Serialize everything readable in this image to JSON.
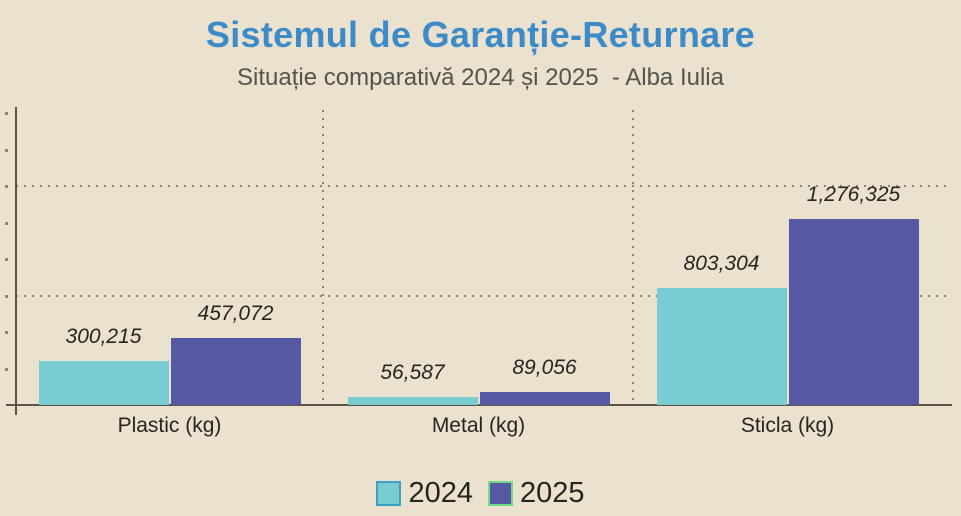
{
  "header": {
    "title": "Sistemul de Garanție-Returnare",
    "subtitle": "Situație comparativă 2024 și 2025  - Alba Iulia"
  },
  "chart_data": {
    "type": "bar",
    "title": "Sistemul de Garanție-Returnare",
    "subtitle": "Situație comparativă 2024 și 2025  - Alba Iulia",
    "categories": [
      "Plastic (kg)",
      "Metal (kg)",
      "Sticla (kg)"
    ],
    "series": [
      {
        "name": "2024",
        "color": "#78CCD2",
        "values": [
          300215,
          56587,
          803304
        ],
        "labels": [
          "300,215",
          "56,587",
          "803,304"
        ]
      },
      {
        "name": "2025",
        "color": "#5558A3",
        "values": [
          457072,
          89056,
          1276325
        ],
        "labels": [
          "457,072",
          "89,056",
          "1,276,325"
        ]
      }
    ],
    "xlabel": "",
    "ylabel": "",
    "ylim": [
      0,
      2024000
    ],
    "y_gridline_values": [
      750000,
      1500000
    ],
    "y_minor_tick_step": 250000,
    "grid": "dotted horizontal major gridlines, dotted vertical category separators",
    "axis_tick_labels_shown": false,
    "value_labels_shown": true,
    "legend_position": "bottom-center"
  },
  "legend": {
    "items": [
      {
        "label": "2024",
        "swatch_color": "#78CCD2",
        "swatch_border": "#3FA0C6"
      },
      {
        "label": "2025",
        "swatch_color": "#5558A3",
        "swatch_border": "#6FDC85"
      }
    ]
  },
  "colors": {
    "background": "#EAE1CE",
    "title": "#3C8BC8",
    "subtitle": "#55544B",
    "axis": "#5A5444",
    "grid_dots": "#8D8373",
    "label_text": "#27251E"
  }
}
